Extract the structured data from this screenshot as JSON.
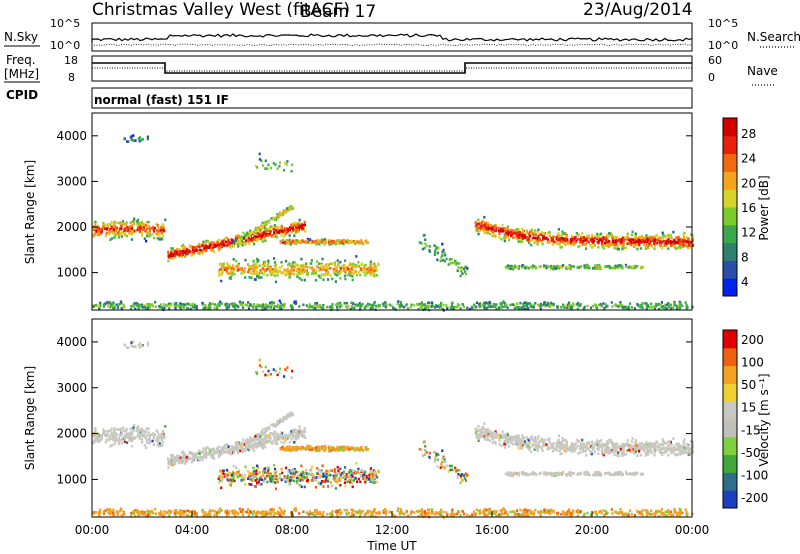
{
  "header": {
    "title": "Christmas Valley West (fitACF)",
    "beam": "Beam 17",
    "date": "23/Aug/2014"
  },
  "strip_sky": {
    "left_label": "N.Sky",
    "left_ticks": [
      "10^5",
      "10^0"
    ],
    "right_label": "N.Search",
    "right_ticks": [
      "10^5",
      "10^0"
    ]
  },
  "strip_freq": {
    "left_label_1": "Freq.",
    "left_label_2": "[MHz]",
    "left_ticks": [
      "18",
      "8"
    ],
    "right_label": "Nave",
    "right_ticks": [
      "60",
      "0"
    ]
  },
  "cpid": {
    "label": "CPID",
    "value": "normal (fast) 151 IF"
  },
  "colors": {
    "power": [
      "#0022ee",
      "#2a4faa",
      "#2e7f6e",
      "#3aa84a",
      "#7ccc2e",
      "#d6d32a",
      "#f4a31a",
      "#f26a10",
      "#e8200c",
      "#d40000"
    ],
    "velocity": [
      "#e00000",
      "#f06010",
      "#f5a020",
      "#f0d030",
      "#c8c8c0",
      "#c0c0b8",
      "#7fd040",
      "#40a838",
      "#2e6e8a",
      "#1a40c0"
    ],
    "ground": "#c8c8c0"
  },
  "chart_data": [
    {
      "type": "heatmap",
      "name": "power-panel",
      "xlabel": "",
      "ylabel": "Slant Range [km]",
      "xlim": [
        0,
        24
      ],
      "ylim": [
        180,
        4500
      ],
      "y_ticks": [
        "1000",
        "2000",
        "3000",
        "4000"
      ],
      "colorbar": {
        "label": "Power [dB]",
        "ticks": [
          "4",
          "8",
          "12",
          "16",
          "20",
          "24",
          "28"
        ],
        "range": [
          0,
          30
        ]
      }
    },
    {
      "type": "heatmap",
      "name": "velocity-panel",
      "xlabel": "Time UT",
      "ylabel": "Slant Range [km]",
      "xlim": [
        0,
        24
      ],
      "ylim": [
        180,
        4500
      ],
      "x_ticks": [
        "00:00",
        "04:00",
        "08:00",
        "12:00",
        "16:00",
        "20:00",
        "00:00"
      ],
      "y_ticks": [
        "1000",
        "2000",
        "3000",
        "4000"
      ],
      "colorbar": {
        "label": "Velocity [m s⁻¹]",
        "ticks": [
          "200",
          "100",
          "50",
          "15",
          "-15",
          "-50",
          "-100",
          "-200"
        ],
        "range": [
          -250,
          250
        ]
      }
    }
  ]
}
